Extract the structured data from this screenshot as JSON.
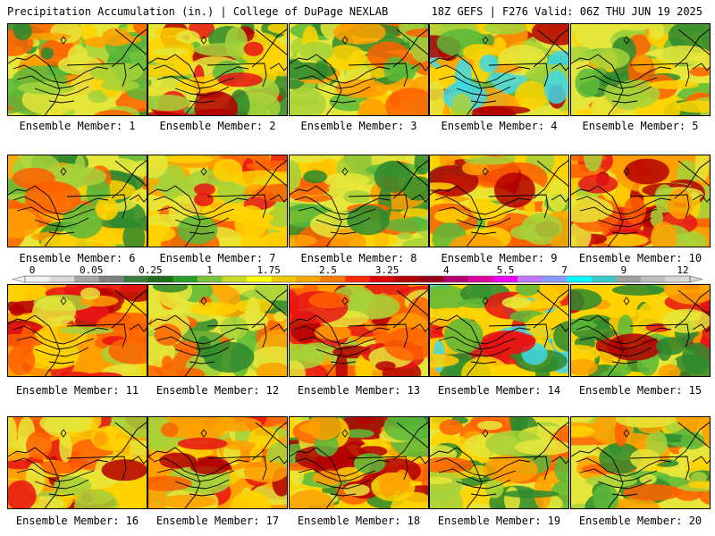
{
  "header": {
    "title": "Precipitation Accumulation (in.) | College of DuPage NEXLAB",
    "run_info": "18Z GEFS | F276 Valid: 06Z THU JUN 19 2025"
  },
  "caption_prefix": "Ensemble Member:",
  "members": [
    {
      "label": "Ensemble Member: 1",
      "palette": [
        0,
        1,
        2,
        3,
        4,
        5,
        6
      ]
    },
    {
      "label": "Ensemble Member: 2",
      "palette": [
        0,
        1,
        2,
        3,
        4,
        7,
        8
      ]
    },
    {
      "label": "Ensemble Member: 3",
      "palette": [
        0,
        1,
        2,
        3,
        4,
        5,
        6
      ]
    },
    {
      "label": "Ensemble Member: 4",
      "palette": [
        1,
        2,
        3,
        4,
        5,
        8,
        10
      ]
    },
    {
      "label": "Ensemble Member: 5",
      "palette": [
        0,
        1,
        2,
        3,
        4,
        5,
        6
      ]
    },
    {
      "label": "Ensemble Member: 6",
      "palette": [
        0,
        1,
        2,
        3,
        4,
        5,
        6
      ]
    },
    {
      "label": "Ensemble Member: 7",
      "palette": [
        1,
        2,
        3,
        4,
        5,
        6,
        7
      ]
    },
    {
      "label": "Ensemble Member: 8",
      "palette": [
        0,
        1,
        2,
        3,
        4,
        5,
        6
      ]
    },
    {
      "label": "Ensemble Member: 9",
      "palette": [
        1,
        2,
        3,
        4,
        5,
        6,
        8
      ]
    },
    {
      "label": "Ensemble Member: 10",
      "palette": [
        2,
        3,
        4,
        5,
        6,
        7,
        8
      ]
    },
    {
      "label": "Ensemble Member: 11",
      "palette": [
        2,
        3,
        4,
        5,
        6,
        7,
        8
      ]
    },
    {
      "label": "Ensemble Member: 12",
      "palette": [
        0,
        1,
        2,
        3,
        4,
        5,
        6
      ]
    },
    {
      "label": "Ensemble Member: 13",
      "palette": [
        2,
        3,
        4,
        5,
        6,
        7,
        8
      ]
    },
    {
      "label": "Ensemble Member: 14",
      "palette": [
        0,
        1,
        3,
        4,
        5,
        7,
        10
      ]
    },
    {
      "label": "Ensemble Member: 15",
      "palette": [
        0,
        1,
        3,
        4,
        5,
        7,
        8
      ]
    },
    {
      "label": "Ensemble Member: 16",
      "palette": [
        2,
        3,
        4,
        5,
        6,
        7,
        8
      ]
    },
    {
      "label": "Ensemble Member: 17",
      "palette": [
        2,
        3,
        4,
        5,
        6,
        7,
        8
      ]
    },
    {
      "label": "Ensemble Member: 18",
      "palette": [
        0,
        1,
        3,
        4,
        5,
        6,
        8
      ]
    },
    {
      "label": "Ensemble Member: 19",
      "palette": [
        0,
        1,
        2,
        3,
        4,
        5,
        6
      ]
    },
    {
      "label": "Ensemble Member: 20",
      "palette": [
        0,
        1,
        2,
        3,
        4,
        5,
        6
      ]
    }
  ],
  "colorbar": {
    "tick_labels": [
      "0",
      "0.05",
      "0.25",
      "1",
      "1.75",
      "2.5",
      "3.25",
      "4",
      "5.5",
      "7",
      "9",
      "12"
    ],
    "colors": [
      "#f2f2f2",
      "#d9d9d9",
      "#a6a6a6",
      "#808080",
      "#3c7d3c",
      "#1e6e1e",
      "#2c9e2c",
      "#7cc23a",
      "#c8dc28",
      "#ffff00",
      "#f0c800",
      "#ffa500",
      "#ff7800",
      "#ff2800",
      "#dc0000",
      "#b40000",
      "#960014",
      "#b4006e",
      "#dc00a0",
      "#f000f0",
      "#be78ff",
      "#8a9aff",
      "#00ffff",
      "#3cc8c8",
      "#a0a0a0",
      "#c0c0c0",
      "#d8d8d8"
    ]
  },
  "field_colors": [
    "#2e8a2e",
    "#5cb83a",
    "#a6d23a",
    "#e6e63a",
    "#ffd200",
    "#ffa000",
    "#ff6000",
    "#e81414",
    "#b40000",
    "#cc1aa0",
    "#40d8e8"
  ]
}
